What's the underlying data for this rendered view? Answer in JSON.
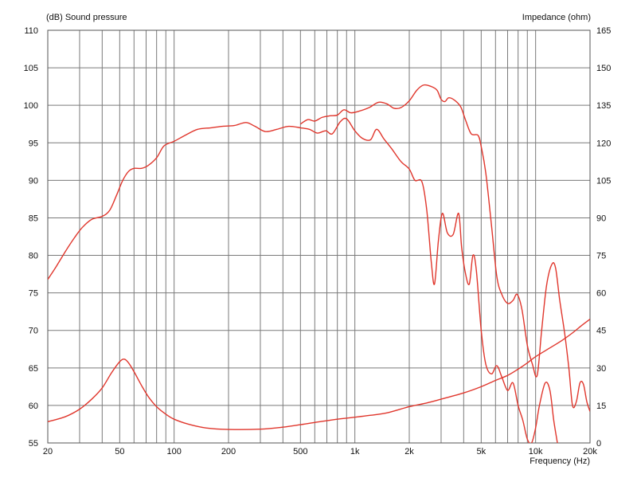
{
  "chart_data": {
    "type": "line",
    "left_axis_label": "(dB)  Sound pressure",
    "right_axis_label": "Impedance  (ohm)",
    "x_axis_label": "Frequency  (Hz)",
    "x_scale": "log",
    "xlim": [
      20,
      20000
    ],
    "ylim_left": [
      55,
      110
    ],
    "ylim_right": [
      0,
      165
    ],
    "grid": true,
    "x_tick_labels": [
      {
        "value": 20,
        "label": "20"
      },
      {
        "value": 50,
        "label": "50"
      },
      {
        "value": 100,
        "label": "100"
      },
      {
        "value": 200,
        "label": "200"
      },
      {
        "value": 500,
        "label": "500"
      },
      {
        "value": 1000,
        "label": "1k"
      },
      {
        "value": 2000,
        "label": "2k"
      },
      {
        "value": 5000,
        "label": "5k"
      },
      {
        "value": 10000,
        "label": "10k"
      },
      {
        "value": 20000,
        "label": "20k"
      }
    ],
    "left_tick_labels": [
      "55",
      "60",
      "65",
      "70",
      "75",
      "80",
      "85",
      "90",
      "95",
      "100",
      "105",
      "110"
    ],
    "right_tick_labels": [
      "0",
      "15",
      "30",
      "45",
      "60",
      "75",
      "90",
      "105",
      "120",
      "135",
      "150",
      "165"
    ],
    "line_color": "#e0362c",
    "series": [
      {
        "axis": "left",
        "points": [
          [
            20,
            76.8
          ],
          [
            22,
            78.3
          ],
          [
            25,
            80.5
          ],
          [
            28,
            82.3
          ],
          [
            31,
            83.7
          ],
          [
            35,
            84.8
          ],
          [
            40,
            85.2
          ],
          [
            44,
            86.0
          ],
          [
            48,
            88.0
          ],
          [
            52,
            90.0
          ],
          [
            56,
            91.2
          ],
          [
            60,
            91.6
          ],
          [
            66,
            91.6
          ],
          [
            72,
            92.0
          ],
          [
            80,
            93.0
          ],
          [
            88,
            94.6
          ],
          [
            100,
            95.2
          ],
          [
            115,
            96.0
          ],
          [
            135,
            96.8
          ],
          [
            160,
            97.0
          ],
          [
            185,
            97.2
          ],
          [
            215,
            97.3
          ],
          [
            250,
            97.7
          ],
          [
            280,
            97.2
          ],
          [
            320,
            96.5
          ],
          [
            370,
            96.8
          ],
          [
            430,
            97.2
          ],
          [
            500,
            97.0
          ],
          [
            560,
            96.8
          ],
          [
            620,
            96.3
          ],
          [
            690,
            96.6
          ],
          [
            750,
            96.2
          ],
          [
            830,
            97.8
          ],
          [
            900,
            98.2
          ],
          [
            1000,
            96.6
          ],
          [
            1100,
            95.6
          ],
          [
            1220,
            95.4
          ],
          [
            1320,
            96.8
          ],
          [
            1450,
            95.5
          ],
          [
            1600,
            94.2
          ],
          [
            1800,
            92.5
          ],
          [
            2000,
            91.5
          ],
          [
            2150,
            90.0
          ],
          [
            2350,
            89.8
          ],
          [
            2500,
            86.0
          ],
          [
            2650,
            79.0
          ],
          [
            2760,
            76.2
          ],
          [
            2900,
            82.0
          ],
          [
            3050,
            85.6
          ],
          [
            3250,
            83.0
          ],
          [
            3500,
            82.8
          ],
          [
            3750,
            85.6
          ],
          [
            3900,
            81.0
          ],
          [
            4100,
            77.5
          ],
          [
            4300,
            76.2
          ],
          [
            4500,
            80.0
          ],
          [
            4700,
            78.0
          ],
          [
            5000,
            70.0
          ],
          [
            5300,
            65.5
          ],
          [
            5700,
            64.2
          ],
          [
            6100,
            65.3
          ],
          [
            6500,
            63.8
          ],
          [
            7000,
            62.0
          ],
          [
            7500,
            63.0
          ],
          [
            8000,
            60.0
          ],
          [
            8500,
            58.0
          ],
          [
            9000,
            55.5
          ],
          [
            9500,
            55.0
          ],
          [
            10000,
            57.0
          ],
          [
            10500,
            60.0
          ],
          [
            11300,
            63.0
          ],
          [
            12000,
            62.0
          ],
          [
            12600,
            58.0
          ],
          [
            13200,
            55.0
          ]
        ]
      },
      {
        "axis": "left",
        "points": [
          [
            500,
            97.5
          ],
          [
            550,
            98.1
          ],
          [
            600,
            97.9
          ],
          [
            660,
            98.4
          ],
          [
            730,
            98.6
          ],
          [
            800,
            98.7
          ],
          [
            870,
            99.4
          ],
          [
            950,
            99.0
          ],
          [
            1050,
            99.2
          ],
          [
            1200,
            99.7
          ],
          [
            1350,
            100.4
          ],
          [
            1500,
            100.2
          ],
          [
            1650,
            99.6
          ],
          [
            1800,
            99.7
          ],
          [
            2000,
            100.6
          ],
          [
            2200,
            102.0
          ],
          [
            2400,
            102.7
          ],
          [
            2650,
            102.5
          ],
          [
            2850,
            102.0
          ],
          [
            3000,
            100.8
          ],
          [
            3150,
            100.5
          ],
          [
            3300,
            101.0
          ],
          [
            3550,
            100.7
          ],
          [
            3850,
            99.8
          ],
          [
            4100,
            98.0
          ],
          [
            4400,
            96.2
          ],
          [
            4800,
            96.0
          ],
          [
            5000,
            94.5
          ],
          [
            5300,
            91.0
          ],
          [
            5700,
            84.0
          ],
          [
            6100,
            77.2
          ],
          [
            6500,
            74.8
          ],
          [
            7000,
            73.6
          ],
          [
            7500,
            74.0
          ],
          [
            7900,
            74.8
          ],
          [
            8400,
            72.8
          ],
          [
            9000,
            68.0
          ],
          [
            9600,
            65.5
          ],
          [
            10200,
            64.0
          ],
          [
            10800,
            70.0
          ],
          [
            11500,
            76.0
          ],
          [
            12300,
            78.8
          ],
          [
            12900,
            78.3
          ],
          [
            13600,
            74.0
          ],
          [
            14500,
            69.5
          ],
          [
            15300,
            64.8
          ],
          [
            16000,
            60.0
          ],
          [
            16800,
            60.5
          ],
          [
            17600,
            63.0
          ],
          [
            18400,
            62.8
          ],
          [
            19200,
            60.5
          ],
          [
            20000,
            59.2
          ]
        ]
      },
      {
        "axis": "right",
        "points": [
          [
            20,
            8.5
          ],
          [
            25,
            10.5
          ],
          [
            30,
            13.5
          ],
          [
            35,
            17.5
          ],
          [
            40,
            22.0
          ],
          [
            45,
            28.0
          ],
          [
            50,
            32.5
          ],
          [
            53,
            33.5
          ],
          [
            56,
            32.0
          ],
          [
            60,
            28.5
          ],
          [
            66,
            23.0
          ],
          [
            72,
            18.5
          ],
          [
            80,
            14.5
          ],
          [
            90,
            11.5
          ],
          [
            100,
            9.5
          ],
          [
            120,
            7.5
          ],
          [
            150,
            6.0
          ],
          [
            200,
            5.4
          ],
          [
            300,
            5.5
          ],
          [
            400,
            6.3
          ],
          [
            500,
            7.3
          ],
          [
            600,
            8.2
          ],
          [
            800,
            9.5
          ],
          [
            1000,
            10.3
          ],
          [
            1200,
            11.0
          ],
          [
            1500,
            12.0
          ],
          [
            2000,
            14.5
          ],
          [
            2500,
            16.0
          ],
          [
            3000,
            17.5
          ],
          [
            4000,
            20.0
          ],
          [
            5000,
            22.5
          ],
          [
            6000,
            25.0
          ],
          [
            7000,
            27.0
          ],
          [
            8000,
            29.5
          ],
          [
            9000,
            32.0
          ],
          [
            10000,
            34.5
          ],
          [
            12000,
            38.0
          ],
          [
            14000,
            41.0
          ],
          [
            16000,
            44.0
          ],
          [
            18000,
            47.0
          ],
          [
            20000,
            49.5
          ]
        ]
      }
    ]
  }
}
